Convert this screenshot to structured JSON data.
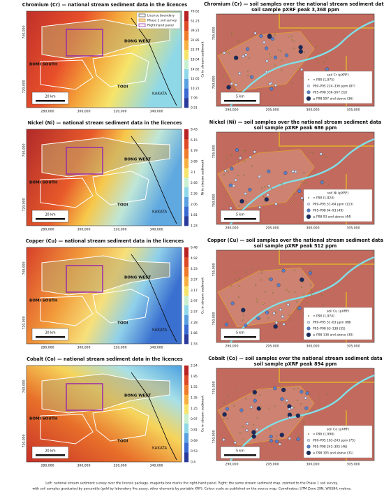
{
  "rows": [
    {
      "left": {
        "title": "Chromium (Cr) — national stream sediment data in the licences",
        "colorbar_label": "Cr in stream sediment",
        "colorbar_ticks": [
          "76.62",
          "51.23",
          "39.21",
          "31.85",
          "23.74",
          "18.04",
          "14.82",
          "12.65",
          "10.21",
          "7.06",
          "0.51"
        ]
      },
      "right": {
        "title": "Chromium (Cr) — soil samples over the national stream sediment data",
        "subtitle": "soil sample pXRF peak 3,368 ppm",
        "legend_title": "soil Cr (pXRF)",
        "legend": [
          "< P90 (1,975)",
          "P90–P95  224–336 ppm  (87)",
          "P95–P98  336–507  (52)",
          "≥ P98  507 and above  (36)"
        ]
      }
    },
    {
      "left": {
        "title": "Nickel (Ni) — national stream sediment data in the licences",
        "colorbar_label": "Ni in stream sediment",
        "colorbar_ticks": [
          "8.43",
          "6.15",
          "4.79",
          "3.89",
          "3.1",
          "2.66",
          "2.26",
          "2.06",
          "1.81",
          "1.23"
        ]
      },
      "right": {
        "title": "Nickel (Ni) — soil samples over the national stream sediment data",
        "subtitle": "soil sample pXRF peak 686 ppm",
        "legend_title": "soil Ni (pXRF)",
        "legend": [
          "< P90 (1,924)",
          "P90–P95  51–64 ppm  (113)",
          "P95–P98  64–93  (49)",
          "≥ P98  93 and above  (44)"
        ]
      }
    },
    {
      "left": {
        "title": "Copper (Cu) — national stream sediment data in the licences",
        "colorbar_label": "Cu in stream sediment",
        "colorbar_ticks": [
          "6.48",
          "4.92",
          "4.23",
          "3.57",
          "3.17",
          "2.97",
          "2.57",
          "2.28",
          "1.86",
          "1.53"
        ]
      },
      "right": {
        "title": "Copper (Cu) — soil samples over the national stream sediment data",
        "subtitle": "soil sample pXRF peak 512 ppm",
        "legend_title": "soil Cu (pXRF)",
        "legend": [
          "< P90 (1,974)",
          "P90–P95  51–63 ppm  (88)",
          "P95–P98  63–138  (55)",
          "≥ P98  138 and above  (30)"
        ]
      }
    },
    {
      "left": {
        "title": "Cobalt (Co) — national stream sediment data in the licences",
        "colorbar_label": "Co in stream sediment",
        "colorbar_ticks": [
          "2.54",
          "1.85",
          "1.55",
          "1.35",
          "1.25",
          "0.97",
          "0.81",
          "0.69",
          "0.53",
          "0.4"
        ]
      },
      "right": {
        "title": "Cobalt (Co) — soil samples over the national stream sediment data",
        "subtitle": "soil sample pXRF peak 894 ppm",
        "legend_title": "soil Co (pXRF)",
        "legend": [
          "< P90 (1,998)",
          "P90–P95  163–243 ppm  (75)",
          "P95–P98  243–305  (46)",
          "≥ P98  305 and above  (31)"
        ]
      }
    }
  ],
  "map_legend": [
    "Licence boundary",
    "Phase 1 soil survey",
    "Right-hand panel"
  ],
  "map_labels": {
    "bong_west": "BONG WEST",
    "bomi_south": "BOMI SOUTH",
    "todi": "TODI",
    "kakata": "KAKATA"
  },
  "left_scale": "20 km",
  "right_scale": "5 km",
  "left_xticks": [
    "280,000",
    "300,000",
    "320,000",
    "340,000"
  ],
  "left_yticks": [
    "740,000",
    "720,000"
  ],
  "right_xticks": [
    "290,000",
    "295,000",
    "300,000",
    "305,000"
  ],
  "right_yticks": [
    "755,000",
    "750,000"
  ],
  "caption": [
    "Left: national stream sediment survey over the licence package, magenta box marks the right-hand panel. Right: the same stream sediment map, zoomed to the Phase 1 soil survey,",
    "with soil samples graduated by percentile (gold by laboratory fire assay, other elements by portable XRF). Colour scale as published on the source map. Coordinates: UTM Zone 29N, WGS84, metres."
  ]
}
